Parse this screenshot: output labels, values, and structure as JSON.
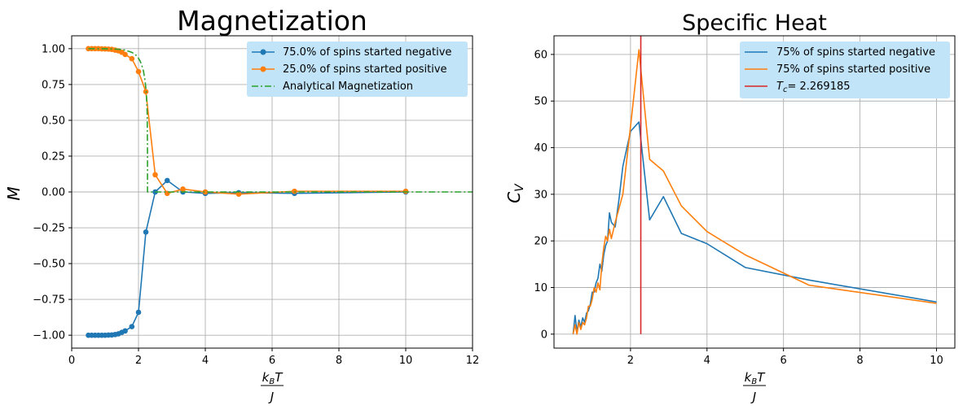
{
  "chart_data": [
    {
      "type": "line",
      "title": "Magnetization",
      "ylabel": "M",
      "xlabel_frac": {
        "num": "k_B T",
        "den": "J"
      },
      "xlim": [
        0,
        12
      ],
      "ylim": [
        -1.09,
        1.09
      ],
      "xticks": [
        0,
        2,
        4,
        6,
        8,
        10,
        12
      ],
      "yticks": [
        -1.0,
        -0.75,
        -0.5,
        -0.25,
        0.0,
        0.25,
        0.5,
        0.75,
        1.0
      ],
      "xtick_labels": [
        "0",
        "2",
        "4",
        "6",
        "8",
        "10",
        "12"
      ],
      "ytick_labels": [
        "−1.00",
        "−0.75",
        "−0.50",
        "−0.25",
        "0.00",
        "0.25",
        "0.50",
        "0.75",
        "1.00"
      ],
      "grid": true,
      "legend_position": "upper-right",
      "series": [
        {
          "name": "75.0% of spins started negative",
          "color": "#1f77b4",
          "style": "solid",
          "marker": "circle",
          "x": [
            0.5,
            0.6,
            0.7,
            0.8,
            0.9,
            1.0,
            1.1,
            1.2,
            1.3,
            1.4,
            1.5,
            1.6,
            1.8,
            2.0,
            2.22,
            2.5,
            2.86,
            3.33,
            4.0,
            5.0,
            6.67,
            10.0
          ],
          "y": [
            -1.0,
            -1.0,
            -1.0,
            -1.0,
            -1.0,
            -1.0,
            -0.999,
            -0.998,
            -0.995,
            -0.99,
            -0.98,
            -0.97,
            -0.94,
            -0.84,
            -0.28,
            0.0,
            0.08,
            0.0,
            -0.01,
            -0.005,
            -0.01,
            0.0
          ]
        },
        {
          "name": "25.0% of spins started positive",
          "color": "#ff7f0e",
          "style": "solid",
          "marker": "circle",
          "x": [
            0.5,
            0.6,
            0.7,
            0.8,
            0.9,
            1.0,
            1.1,
            1.2,
            1.3,
            1.4,
            1.5,
            1.6,
            1.8,
            2.0,
            2.22,
            2.5,
            2.86,
            3.33,
            4.0,
            5.0,
            6.67,
            10.0
          ],
          "y": [
            1.0,
            1.0,
            1.0,
            1.0,
            0.999,
            0.998,
            0.997,
            0.995,
            0.99,
            0.985,
            0.975,
            0.96,
            0.93,
            0.84,
            0.7,
            0.12,
            -0.01,
            0.02,
            0.0,
            -0.015,
            0.005,
            0.005
          ]
        },
        {
          "name": "Analytical Magnetization",
          "color": "#2ca02c",
          "style": "dashdot",
          "marker": "none",
          "x": [
            0.5,
            1.0,
            1.4,
            1.6,
            1.8,
            1.9,
            2.0,
            2.05,
            2.1,
            2.15,
            2.2,
            2.23,
            2.25,
            2.26,
            2.269,
            2.269,
            12.0
          ],
          "y": [
            1.0,
            0.9996,
            0.996,
            0.99,
            0.974,
            0.962,
            0.933,
            0.913,
            0.883,
            0.843,
            0.771,
            0.701,
            0.618,
            0.545,
            0.28,
            0.0,
            0.0
          ]
        }
      ]
    },
    {
      "type": "line",
      "title": "Specific Heat",
      "ylabel": "C_V",
      "xlabel_frac": {
        "num": "k_B T",
        "den": "J"
      },
      "xlim": [
        0.0,
        10.48
      ],
      "ylim": [
        -3.0,
        64.0
      ],
      "xticks": [
        2,
        4,
        6,
        8,
        10
      ],
      "yticks": [
        0,
        10,
        20,
        30,
        40,
        50,
        60
      ],
      "xtick_labels": [
        "2",
        "4",
        "6",
        "8",
        "10"
      ],
      "ytick_labels": [
        "0",
        "10",
        "20",
        "30",
        "40",
        "50",
        "60"
      ],
      "grid": true,
      "legend_position": "upper-right",
      "series": [
        {
          "name": "75% of spins started negative",
          "color": "#1f77b4",
          "style": "solid",
          "x": [
            0.5,
            0.55,
            0.6,
            0.65,
            0.7,
            0.75,
            0.8,
            0.85,
            0.9,
            0.95,
            1.0,
            1.05,
            1.1,
            1.15,
            1.2,
            1.25,
            1.3,
            1.35,
            1.4,
            1.45,
            1.5,
            1.6,
            1.7,
            1.8,
            2.0,
            2.22,
            2.5,
            2.86,
            3.33,
            4.0,
            5.0,
            6.67,
            10.0
          ],
          "y": [
            0.0,
            4.0,
            0.5,
            3.0,
            1.5,
            3.5,
            2.5,
            4.5,
            5.0,
            6.5,
            9.0,
            9.0,
            11.0,
            12.0,
            15.0,
            13.5,
            17.0,
            19.0,
            20.0,
            26.0,
            24.0,
            23.0,
            29.0,
            36.0,
            43.5,
            45.5,
            24.5,
            29.5,
            21.6,
            19.4,
            14.3,
            11.6,
            6.9
          ]
        },
        {
          "name": "75% of spins started positive",
          "color": "#ff7f0e",
          "style": "solid",
          "x": [
            0.5,
            0.55,
            0.6,
            0.65,
            0.7,
            0.75,
            0.8,
            0.85,
            0.9,
            0.95,
            1.0,
            1.05,
            1.1,
            1.15,
            1.2,
            1.25,
            1.3,
            1.35,
            1.4,
            1.45,
            1.5,
            1.6,
            1.7,
            1.8,
            2.0,
            2.22,
            2.5,
            2.86,
            3.33,
            4.0,
            5.0,
            6.67,
            10.0
          ],
          "y": [
            0.0,
            2.0,
            0.0,
            2.5,
            1.0,
            2.5,
            2.0,
            3.5,
            6.0,
            6.0,
            7.5,
            10.0,
            9.0,
            11.0,
            9.5,
            15.0,
            18.5,
            21.0,
            20.0,
            22.5,
            20.5,
            24.0,
            27.0,
            30.0,
            44.5,
            61.0,
            37.5,
            35.0,
            27.5,
            22.0,
            17.0,
            10.5,
            6.6
          ]
        },
        {
          "name": "T_c = 2.269185",
          "color": "#d62728",
          "style": "solid",
          "x": [
            2.269185,
            2.269185
          ],
          "y": [
            0.0,
            64.0
          ]
        }
      ]
    }
  ],
  "legend_labels": {
    "mag": [
      "75.0% of spins started negative",
      "25.0% of spins started positive",
      "Analytical Magnetization"
    ],
    "cv_plain": [
      "75% of spins started negative",
      "75% of spins started positive"
    ],
    "cv_tc_value": "= 2.269185"
  },
  "colors": {
    "legend_bg": "#c2e4f8",
    "grid": "#b0b0b0"
  }
}
